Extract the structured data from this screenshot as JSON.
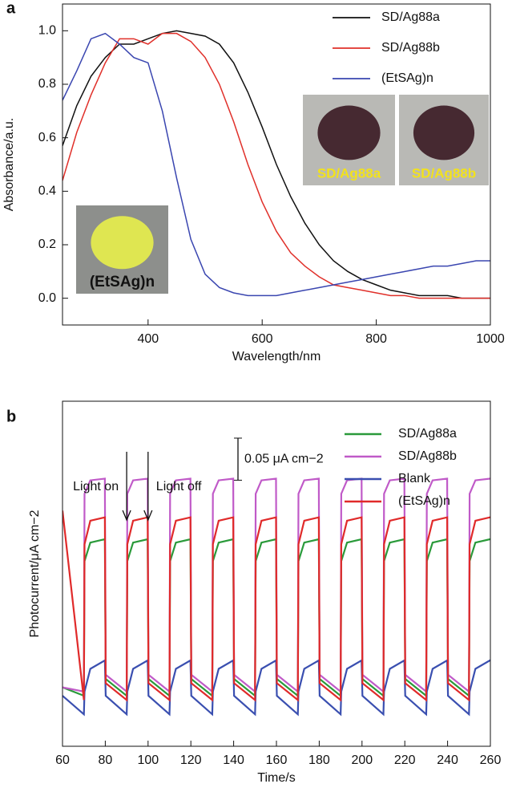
{
  "chart_data": [
    {
      "type": "line",
      "panel": "a",
      "x_label": "Wavelength/nm",
      "y_label": "Absorbance/a.u.",
      "xlim": [
        250,
        1000
      ],
      "ylim": [
        -0.1,
        1.1
      ],
      "xticks": [
        400,
        600,
        800,
        1000
      ],
      "yticks": [
        {
          "value": 0,
          "label": "0.0"
        },
        0.2,
        0.4,
        0.6,
        0.8,
        {
          "value": 1,
          "label": "1.0"
        }
      ],
      "legend": "upper right",
      "x": [
        250,
        275,
        300,
        325,
        350,
        375,
        400,
        425,
        450,
        475,
        500,
        525,
        550,
        575,
        600,
        625,
        650,
        675,
        700,
        725,
        750,
        775,
        800,
        825,
        850,
        875,
        900,
        925,
        950,
        975,
        1000
      ],
      "series": [
        {
          "name": "SD/Ag88a",
          "color": "#111111",
          "values": [
            0.57,
            0.72,
            0.83,
            0.9,
            0.95,
            0.95,
            0.97,
            0.99,
            1.0,
            0.99,
            0.98,
            0.95,
            0.88,
            0.77,
            0.64,
            0.5,
            0.38,
            0.28,
            0.2,
            0.14,
            0.1,
            0.07,
            0.05,
            0.03,
            0.02,
            0.01,
            0.01,
            0.01,
            0.0,
            0.0,
            0.0
          ]
        },
        {
          "name": "SD/Ag88b",
          "color": "#e0302a",
          "values": [
            0.44,
            0.62,
            0.76,
            0.88,
            0.97,
            0.97,
            0.95,
            0.99,
            0.99,
            0.96,
            0.9,
            0.8,
            0.66,
            0.5,
            0.36,
            0.25,
            0.17,
            0.12,
            0.08,
            0.05,
            0.04,
            0.03,
            0.02,
            0.01,
            0.01,
            0.0,
            0.0,
            0.0,
            0.0,
            0.0,
            0.0
          ]
        },
        {
          "name": "(EtSAg)n",
          "color": "#3a46b0",
          "values": [
            0.74,
            0.85,
            0.97,
            0.99,
            0.95,
            0.9,
            0.88,
            0.7,
            0.45,
            0.22,
            0.09,
            0.04,
            0.02,
            0.01,
            0.01,
            0.01,
            0.02,
            0.03,
            0.04,
            0.05,
            0.06,
            0.07,
            0.08,
            0.09,
            0.1,
            0.11,
            0.12,
            0.12,
            0.13,
            0.14,
            0.14
          ]
        }
      ],
      "photo_labels": [
        "(EtSAg)n",
        "SD/Ag88a",
        "SD/Ag88b"
      ]
    },
    {
      "type": "line",
      "panel": "b",
      "x_label": "Time/s",
      "y_label": "Photocurrent/μA cm−2",
      "xlim": [
        60,
        260
      ],
      "ylim": [
        -0.02,
        0.39
      ],
      "xticks": [
        60,
        80,
        100,
        120,
        140,
        160,
        180,
        200,
        220,
        240,
        260
      ],
      "legend": "upper right",
      "x": [
        60,
        70,
        70.3,
        73,
        79.8,
        80.2,
        90,
        90.3,
        93,
        99.8,
        100.2,
        110,
        110.3,
        113,
        119.8,
        120.2,
        130,
        130.3,
        133,
        139.8,
        140.2,
        150,
        150.3,
        153,
        159.8,
        160.2,
        170,
        170.3,
        173,
        179.8,
        180.2,
        190,
        190.3,
        193,
        199.8,
        200.2,
        210,
        210.3,
        213,
        219.8,
        220.2,
        230,
        230.3,
        233,
        239.8,
        240.2,
        250,
        250.3,
        253,
        259.8,
        260
      ],
      "series": [
        {
          "name": "SD/Ag88a",
          "color": "#2a9a3a",
          "values": [
            0.05,
            0.04,
            0.2,
            0.222,
            0.226,
            0.06,
            0.04,
            0.2,
            0.222,
            0.226,
            0.06,
            0.04,
            0.2,
            0.222,
            0.226,
            0.06,
            0.04,
            0.2,
            0.222,
            0.226,
            0.06,
            0.04,
            0.2,
            0.222,
            0.226,
            0.06,
            0.04,
            0.2,
            0.222,
            0.226,
            0.06,
            0.04,
            0.2,
            0.222,
            0.226,
            0.06,
            0.04,
            0.2,
            0.222,
            0.226,
            0.06,
            0.04,
            0.2,
            0.222,
            0.226,
            0.06,
            0.04,
            0.2,
            0.222,
            0.226,
            0.226
          ]
        },
        {
          "name": "SD/Ag88b",
          "color": "#c05ac8",
          "values": [
            0.05,
            0.045,
            0.28,
            0.296,
            0.298,
            0.065,
            0.045,
            0.28,
            0.296,
            0.298,
            0.065,
            0.045,
            0.28,
            0.296,
            0.298,
            0.065,
            0.045,
            0.28,
            0.296,
            0.298,
            0.065,
            0.045,
            0.28,
            0.296,
            0.298,
            0.065,
            0.045,
            0.28,
            0.296,
            0.298,
            0.065,
            0.045,
            0.28,
            0.296,
            0.298,
            0.065,
            0.045,
            0.28,
            0.296,
            0.298,
            0.065,
            0.045,
            0.28,
            0.296,
            0.298,
            0.065,
            0.045,
            0.28,
            0.296,
            0.298,
            0.298
          ]
        },
        {
          "name": "Blank",
          "color": "#3a4fb0",
          "values": [
            0.04,
            0.018,
            0.045,
            0.072,
            0.082,
            0.04,
            0.018,
            0.045,
            0.072,
            0.082,
            0.04,
            0.018,
            0.045,
            0.072,
            0.082,
            0.04,
            0.018,
            0.045,
            0.072,
            0.082,
            0.04,
            0.018,
            0.045,
            0.072,
            0.082,
            0.04,
            0.018,
            0.045,
            0.072,
            0.082,
            0.04,
            0.018,
            0.045,
            0.072,
            0.082,
            0.04,
            0.018,
            0.045,
            0.072,
            0.082,
            0.04,
            0.018,
            0.045,
            0.072,
            0.082,
            0.04,
            0.018,
            0.045,
            0.072,
            0.082,
            0.082
          ]
        },
        {
          "name": "(EtSAg)n",
          "color": "#e02a2a",
          "values": [
            0.26,
            0.035,
            0.22,
            0.248,
            0.252,
            0.055,
            0.035,
            0.22,
            0.248,
            0.252,
            0.055,
            0.035,
            0.22,
            0.248,
            0.252,
            0.055,
            0.035,
            0.22,
            0.248,
            0.252,
            0.055,
            0.035,
            0.22,
            0.248,
            0.252,
            0.055,
            0.035,
            0.22,
            0.248,
            0.252,
            0.055,
            0.035,
            0.22,
            0.248,
            0.252,
            0.055,
            0.035,
            0.22,
            0.248,
            0.252,
            0.055,
            0.035,
            0.22,
            0.248,
            0.252,
            0.055,
            0.035,
            0.22,
            0.248,
            0.252,
            0.252
          ]
        }
      ],
      "annotations": [
        {
          "text": "Light on",
          "x": 90
        },
        {
          "text": "Light off",
          "x": 100
        }
      ],
      "scale_bar": {
        "value": 0.05,
        "label": "0.05 μA cm−2"
      }
    }
  ]
}
